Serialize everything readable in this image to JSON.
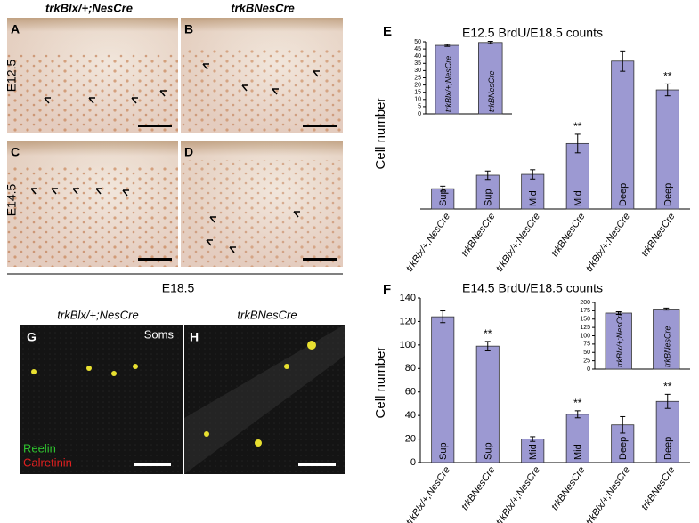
{
  "panels": {
    "col_left": "trkBlx/+;NesCre",
    "col_right": "trkBNesCre",
    "row_top": "E12.5",
    "row_mid": "E14.5",
    "bottom": "E18.5",
    "a": "A",
    "b": "B",
    "c": "C",
    "d": "D",
    "g_head": "trkBlx/+;NesCre",
    "h_head": "trkBNesCre",
    "g": "G",
    "h": "H",
    "soms": "Soms",
    "reelin": "Reelin",
    "calretinin": "Calretinin"
  },
  "chart_data": [
    {
      "type": "bar",
      "panel": "E",
      "title": "E12.5 BrdU/E18.5 counts",
      "y_label": "Cell number",
      "color": "#9c99d2",
      "categories": [
        "trkBlx/+;NesCre",
        "trkBNesCre",
        "trkBlx/+;NesCre",
        "trkBNesCre",
        "trkBlx/+;NesCre",
        "trkBNesCre"
      ],
      "bar_labels": [
        "Sup",
        "Sup",
        "Mid",
        "Mid",
        "Deep",
        "Deep"
      ],
      "values": [
        4.8,
        8,
        8.2,
        15.5,
        35,
        28.2
      ],
      "errors": [
        0.6,
        1,
        1.1,
        2.2,
        2.4,
        1.4
      ],
      "significance": [
        null,
        null,
        null,
        "**",
        null,
        "**"
      ],
      "ylim": [
        0,
        40
      ]
    },
    {
      "type": "bar",
      "color": "#9c99d2",
      "categories": [
        "trkBlx/+;NesCre",
        "trkBNesCre"
      ],
      "values": [
        47.5,
        49.5
      ],
      "errors": [
        0.7,
        0.8
      ],
      "ylim": [
        0,
        50
      ],
      "yticks": [
        0,
        5,
        10,
        15,
        20,
        25,
        30,
        35,
        40,
        45,
        50
      ]
    },
    {
      "type": "bar",
      "panel": "F",
      "title": "E14.5 BrdU/E18.5 counts",
      "y_label": "Cell number",
      "color": "#9c99d2",
      "categories": [
        "trkBlx/+;NesCre",
        "trkBNesCre",
        "trkBlx/+;NesCre",
        "trkBNesCre",
        "trkBlx/+;NesCre",
        "trkBNesCre"
      ],
      "bar_labels": [
        "Sup",
        "Sup",
        "Mid",
        "Mid",
        "Deep",
        "Deep"
      ],
      "values": [
        124,
        99,
        20,
        41,
        32,
        52
      ],
      "errors": [
        5,
        4,
        2,
        3,
        7,
        6
      ],
      "significance": [
        null,
        "**",
        null,
        "**",
        null,
        "**"
      ],
      "ylim": [
        0,
        140
      ],
      "yticks": [
        0,
        20,
        40,
        60,
        80,
        100,
        120,
        140
      ]
    },
    {
      "type": "bar",
      "color": "#9c99d2",
      "categories": [
        "trkBlx/+;NesCre",
        "trkBNesCre"
      ],
      "values": [
        168,
        180
      ],
      "errors": [
        4,
        3
      ],
      "ylim": [
        0,
        200
      ],
      "yticks": [
        0,
        25,
        50,
        75,
        100,
        125,
        150,
        175,
        200
      ]
    }
  ]
}
